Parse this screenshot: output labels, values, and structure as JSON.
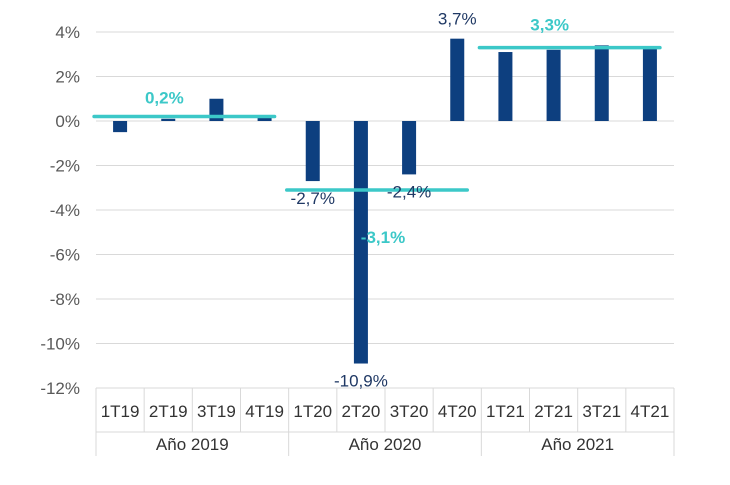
{
  "chart_data": {
    "type": "bar",
    "title": "",
    "xlabel": "",
    "ylabel": "",
    "ylim": [
      -12,
      4
    ],
    "yticks": [
      -12,
      -10,
      -8,
      -6,
      -4,
      -2,
      0,
      2,
      4
    ],
    "ytick_labels": [
      "-12%",
      "-10%",
      "-8%",
      "-6%",
      "-4%",
      "-2%",
      "0%",
      "2%",
      "4%"
    ],
    "grid": true,
    "categories": [
      "1T19",
      "2T19",
      "3T19",
      "4T19",
      "1T20",
      "2T20",
      "3T20",
      "4T20",
      "1T21",
      "2T21",
      "3T21",
      "4T21"
    ],
    "values": [
      -0.5,
      0.1,
      1.0,
      0.2,
      -2.7,
      -10.9,
      -2.4,
      3.7,
      3.1,
      3.2,
      3.4,
      3.3
    ],
    "bar_color": "#0d3f7f",
    "groups": [
      {
        "label": "Año 2019",
        "start": 0,
        "end": 3,
        "average": 0.2,
        "average_label": "0,2%"
      },
      {
        "label": "Año 2020",
        "start": 4,
        "end": 7,
        "average": -3.1,
        "average_label": "-3,1%"
      },
      {
        "label": "Año 2021",
        "start": 8,
        "end": 11,
        "average": 3.3,
        "average_label": "3,3%"
      }
    ],
    "average_color": "#3cc8c8",
    "data_labels": [
      {
        "index": 4,
        "text": "-2,7%"
      },
      {
        "index": 5,
        "text": "-10,9%"
      },
      {
        "index": 6,
        "text": "-2,4%"
      },
      {
        "index": 7,
        "text": "3,7%"
      }
    ]
  }
}
